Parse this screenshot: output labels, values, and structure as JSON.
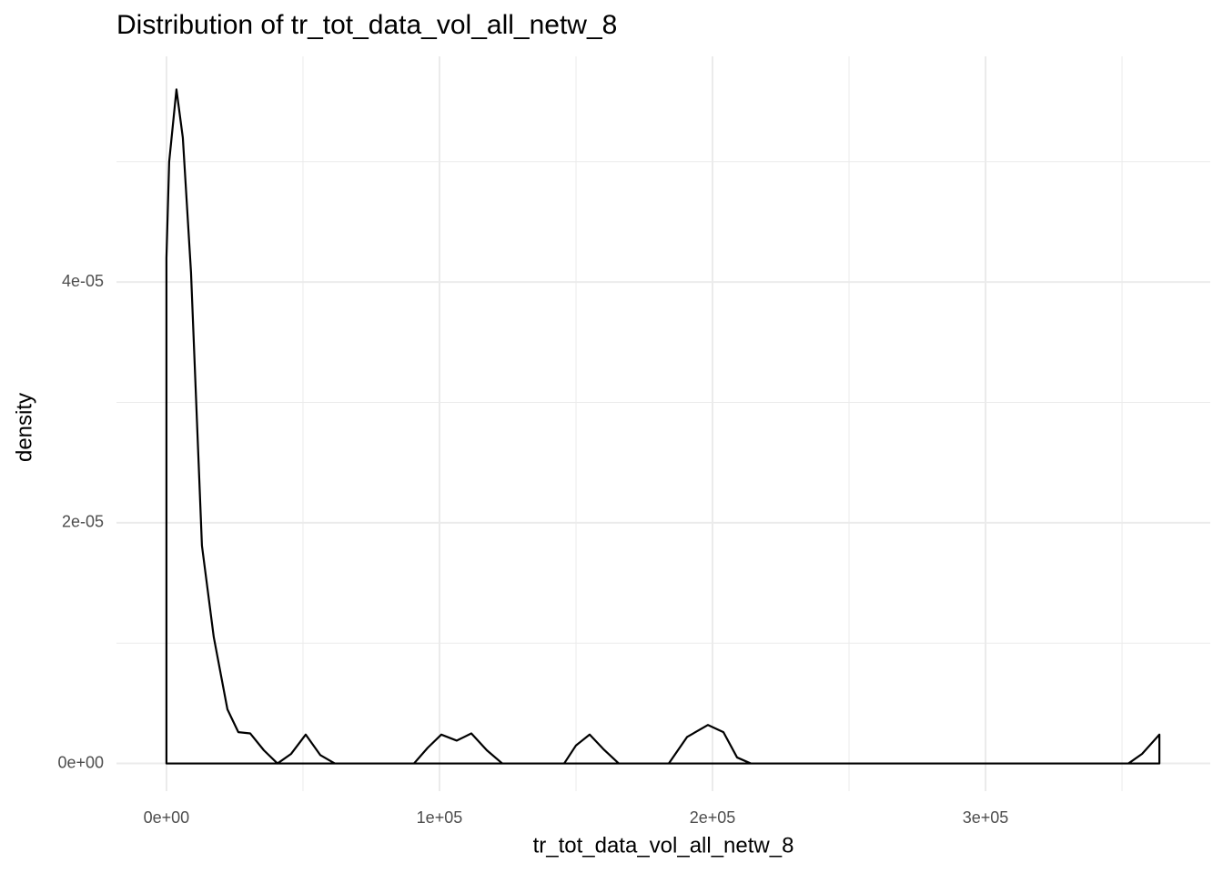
{
  "chart_data": {
    "type": "density",
    "title": "Distribution of tr_tot_data_vol_all_netw_8",
    "x_label": "tr_tot_data_vol_all_netw_8",
    "y_label": "density",
    "color": "#000000",
    "grid": true,
    "xlim": [
      -18300,
      382300
    ],
    "ylim": [
      -2.3e-06,
      5.875e-05
    ],
    "xticks": [
      {
        "value": 0,
        "label": "0e+00"
      },
      {
        "value": 100000,
        "label": "1e+05"
      },
      {
        "value": 200000,
        "label": "2e+05"
      },
      {
        "value": 300000,
        "label": "3e+05"
      }
    ],
    "yticks": [
      {
        "value": 0,
        "label": "0e+00"
      },
      {
        "value": 2e-05,
        "label": "2e-05"
      },
      {
        "value": 4e-05,
        "label": "4e-05"
      }
    ],
    "x": [
      0,
      0,
      1000,
      3667,
      6000,
      9000,
      13000,
      17333,
      22333,
      26333,
      30667,
      35667,
      40667,
      45667,
      51000,
      56333,
      61667,
      90667,
      95667,
      100667,
      106333,
      111667,
      117333,
      123000,
      145667,
      150000,
      155000,
      160000,
      165667,
      184000,
      190667,
      198333,
      204000,
      209000,
      214000,
      352333,
      357333,
      363667,
      363667
    ],
    "values": [
      0,
      4.2e-05,
      5e-05,
      5.6e-05,
      5.2e-05,
      4.08e-05,
      1.81e-05,
      1.05e-05,
      4.5e-06,
      2.6e-06,
      2.5e-06,
      1.1e-06,
      0,
      8e-07,
      2.4e-06,
      7e-07,
      0,
      0,
      1.3e-06,
      2.4e-06,
      1.9e-06,
      2.5e-06,
      1.1e-06,
      0,
      0,
      1.5e-06,
      2.4e-06,
      1.2e-06,
      0,
      0,
      2.2e-06,
      3.2e-06,
      2.6e-06,
      5e-07,
      0,
      0,
      8e-07,
      2.4e-06,
      0
    ]
  }
}
